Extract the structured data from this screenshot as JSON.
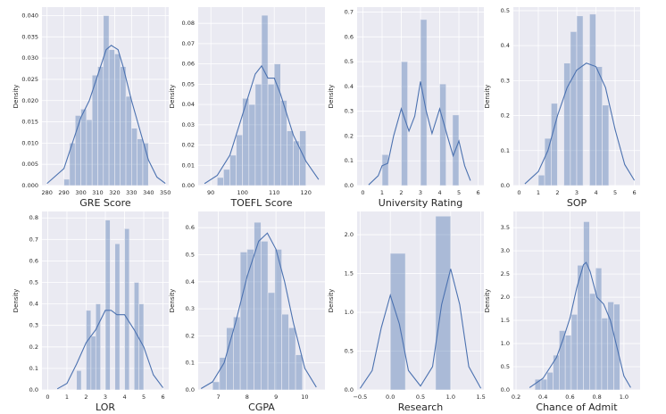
{
  "chart_data": [
    {
      "type": "histogram",
      "xlabel": "GRE Score",
      "ylabel": "Density",
      "color": "#4c72b0",
      "bins": [
        290,
        293.33,
        296.67,
        300,
        303.33,
        306.67,
        310,
        313.33,
        316.67,
        320,
        323.33,
        326.67,
        330,
        333.33,
        336.67,
        340
      ],
      "counts": [
        0.0015,
        0.01,
        0.0165,
        0.018,
        0.0155,
        0.026,
        0.028,
        0.04,
        0.032,
        0.031,
        0.028,
        0.021,
        0.0135,
        0.011,
        0.01
      ],
      "kde": {
        "x": [
          280,
          290,
          295,
          300,
          305,
          310,
          315,
          318,
          322,
          325,
          330,
          335,
          340,
          345,
          350
        ],
        "y": [
          0.0005,
          0.004,
          0.01,
          0.016,
          0.02,
          0.026,
          0.032,
          0.033,
          0.032,
          0.028,
          0.02,
          0.013,
          0.006,
          0.002,
          0.0005
        ]
      },
      "xlim": [
        277,
        352
      ],
      "xticks": [
        280,
        290,
        300,
        310,
        320,
        330,
        340,
        350
      ],
      "ylim": [
        0,
        0.042
      ],
      "yticks": [
        {
          "value": 0,
          "label": "0.000"
        },
        {
          "value": 0.005,
          "label": "0.005"
        },
        {
          "value": 0.01,
          "label": "0.010"
        },
        {
          "value": 0.015,
          "label": "0.015"
        },
        {
          "value": 0.02,
          "label": "0.020"
        },
        {
          "value": 0.025,
          "label": "0.025"
        },
        {
          "value": 0.03,
          "label": "0.030"
        },
        {
          "value": 0.035,
          "label": "0.035"
        },
        {
          "value": 0.04,
          "label": "0.040"
        }
      ]
    },
    {
      "type": "histogram",
      "xlabel": "TOEFL Score",
      "ylabel": "Density",
      "color": "#4c72b0",
      "bins": [
        92,
        94,
        96,
        98,
        100,
        102,
        104,
        106,
        108,
        110,
        112,
        114,
        116,
        118,
        120
      ],
      "counts": [
        0.004,
        0.008,
        0.015,
        0.025,
        0.043,
        0.04,
        0.05,
        0.084,
        0.05,
        0.06,
        0.042,
        0.027,
        0.022,
        0.027
      ],
      "kde": {
        "x": [
          88,
          92,
          96,
          100,
          104,
          106,
          108,
          110,
          112,
          116,
          120,
          124
        ],
        "y": [
          0.001,
          0.005,
          0.015,
          0.035,
          0.055,
          0.059,
          0.053,
          0.053,
          0.045,
          0.025,
          0.012,
          0.003
        ]
      },
      "xlim": [
        86,
        126
      ],
      "xticks": [
        90,
        100,
        110,
        120
      ],
      "ylim": [
        0,
        0.088
      ],
      "yticks": [
        {
          "value": 0,
          "label": "0.00"
        },
        {
          "value": 0.01,
          "label": "0.01"
        },
        {
          "value": 0.02,
          "label": "0.02"
        },
        {
          "value": 0.03,
          "label": "0.03"
        },
        {
          "value": 0.04,
          "label": "0.04"
        },
        {
          "value": 0.05,
          "label": "0.05"
        },
        {
          "value": 0.06,
          "label": "0.06"
        },
        {
          "value": 0.07,
          "label": "0.07"
        },
        {
          "value": 0.08,
          "label": "0.08"
        }
      ]
    },
    {
      "type": "histogram",
      "xlabel": "University Rating",
      "ylabel": "Density",
      "color": "#4c72b0",
      "bins": [
        1,
        1.33,
        1.67,
        2,
        2.33,
        2.67,
        3,
        3.33,
        3.67,
        4,
        4.33,
        4.67,
        5
      ],
      "counts": [
        0.125,
        0,
        0,
        0.5,
        0,
        0,
        0.67,
        0,
        0,
        0.41,
        0,
        0.285
      ],
      "kde": {
        "x": [
          0.3,
          0.8,
          1.0,
          1.3,
          1.6,
          2.0,
          2.4,
          2.7,
          3.0,
          3.3,
          3.6,
          4.0,
          4.4,
          4.7,
          5.0,
          5.3,
          5.6
        ],
        "y": [
          0.003,
          0.04,
          0.08,
          0.09,
          0.2,
          0.31,
          0.22,
          0.28,
          0.42,
          0.3,
          0.21,
          0.31,
          0.2,
          0.12,
          0.18,
          0.08,
          0.02
        ]
      },
      "xlim": [
        -0.3,
        6.3
      ],
      "xticks": [
        0,
        1,
        2,
        3,
        4,
        5,
        6
      ],
      "ylim": [
        0,
        0.72
      ],
      "yticks": [
        {
          "value": 0,
          "label": "0.0"
        },
        0.1,
        0.2,
        0.3,
        0.4,
        0.5,
        0.6,
        0.7
      ]
    },
    {
      "type": "histogram",
      "xlabel": "SOP",
      "ylabel": "Density",
      "color": "#4c72b0",
      "bins": [
        1,
        1.33,
        1.67,
        2,
        2.33,
        2.67,
        3,
        3.33,
        3.67,
        4,
        4.33,
        4.67,
        5
      ],
      "counts": [
        0.03,
        0.135,
        0.235,
        0,
        0.35,
        0.44,
        0.485,
        0,
        0.49,
        0.34,
        0.23,
        0
      ],
      "kde": {
        "x": [
          0.3,
          1,
          1.5,
          2,
          2.5,
          3,
          3.5,
          4,
          4.5,
          5,
          5.5,
          6
        ],
        "y": [
          0.005,
          0.04,
          0.1,
          0.2,
          0.28,
          0.33,
          0.35,
          0.34,
          0.28,
          0.16,
          0.06,
          0.015
        ]
      },
      "xlim": [
        -0.3,
        6.3
      ],
      "xticks": [
        0,
        1,
        2,
        3,
        4,
        5,
        6
      ],
      "ylim": [
        0,
        0.51
      ],
      "yticks": [
        {
          "value": 0,
          "label": "0.0"
        },
        0.1,
        0.2,
        0.3,
        0.4,
        0.5
      ]
    },
    {
      "type": "histogram",
      "xlabel": "LOR",
      "ylabel": "Density",
      "color": "#4c72b0",
      "bins": [
        1,
        1.25,
        1.5,
        1.75,
        2,
        2.25,
        2.5,
        2.75,
        3,
        3.25,
        3.5,
        3.75,
        4,
        4.25,
        4.5,
        4.75,
        5
      ],
      "counts": [
        0,
        0,
        0.09,
        0,
        0.37,
        0.25,
        0.4,
        0,
        0.79,
        0,
        0.68,
        0,
        0.75,
        0,
        0.5,
        0.4
      ],
      "kde": {
        "x": [
          0.5,
          1,
          1.5,
          2,
          2.5,
          3,
          3.3,
          3.6,
          4,
          4.5,
          5,
          5.5,
          6
        ],
        "y": [
          0.005,
          0.03,
          0.12,
          0.22,
          0.28,
          0.37,
          0.37,
          0.35,
          0.35,
          0.28,
          0.2,
          0.07,
          0.01
        ]
      },
      "xlim": [
        -0.3,
        6.3
      ],
      "xticks": [
        0,
        1,
        2,
        3,
        4,
        5,
        6
      ],
      "ylim": [
        0,
        0.83
      ],
      "yticks": [
        {
          "value": 0,
          "label": "0.0"
        },
        0.1,
        0.2,
        0.3,
        0.4,
        0.5,
        0.6,
        0.7,
        0.8
      ]
    },
    {
      "type": "histogram",
      "xlabel": "CGPA",
      "ylabel": "Density",
      "color": "#4c72b0",
      "bins": [
        6.8,
        7.04,
        7.28,
        7.52,
        7.76,
        8.0,
        8.24,
        8.48,
        8.72,
        8.96,
        9.2,
        9.44,
        9.68,
        9.92
      ],
      "counts": [
        0.03,
        0.12,
        0.23,
        0.27,
        0.51,
        0.52,
        0.62,
        0.55,
        0.36,
        0.52,
        0.28,
        0.23,
        0.13
      ],
      "kde": {
        "x": [
          6.4,
          6.8,
          7.2,
          7.6,
          8.0,
          8.4,
          8.7,
          9.0,
          9.3,
          9.6,
          10,
          10.4
        ],
        "y": [
          0.005,
          0.03,
          0.1,
          0.25,
          0.42,
          0.55,
          0.58,
          0.52,
          0.4,
          0.25,
          0.08,
          0.01
        ]
      },
      "xlim": [
        6.3,
        10.7
      ],
      "xticks": [
        7,
        8,
        9,
        10
      ],
      "ylim": [
        0,
        0.66
      ],
      "yticks": [
        {
          "value": 0,
          "label": "0.0"
        },
        0.1,
        0.2,
        0.3,
        0.4,
        0.5,
        0.6
      ]
    },
    {
      "type": "histogram",
      "xlabel": "Research",
      "ylabel": "Density",
      "color": "#4c72b0",
      "bins": [
        0,
        0.25,
        0.5,
        0.75,
        1
      ],
      "counts": [
        1.76,
        0,
        0,
        2.24
      ],
      "kde": {
        "x": [
          -0.5,
          -0.3,
          -0.15,
          0,
          0.15,
          0.3,
          0.5,
          0.7,
          0.85,
          1.0,
          1.15,
          1.3,
          1.5
        ],
        "y": [
          0.02,
          0.25,
          0.8,
          1.22,
          0.85,
          0.25,
          0.05,
          0.3,
          1.1,
          1.56,
          1.1,
          0.3,
          0.02
        ]
      },
      "xlim": [
        -0.55,
        1.55
      ],
      "xticks": [
        {
          "value": -0.5,
          "label": "−0.5"
        },
        {
          "value": 0,
          "label": "0.0"
        },
        0.5,
        {
          "value": 1,
          "label": "1.0"
        },
        1.5
      ],
      "ylim": [
        0,
        2.3
      ],
      "yticks": [
        {
          "value": 0,
          "label": "0.0"
        },
        0.5,
        {
          "value": 1,
          "label": "1.0"
        },
        1.5,
        {
          "value": 2,
          "label": "2.0"
        }
      ]
    },
    {
      "type": "histogram",
      "xlabel": "Chance of Admit",
      "ylabel": "Density",
      "color": "#4c72b0",
      "bins": [
        0.34,
        0.385,
        0.43,
        0.475,
        0.52,
        0.565,
        0.61,
        0.655,
        0.7,
        0.745,
        0.79,
        0.835,
        0.88,
        0.925,
        0.97
      ],
      "counts": [
        0.23,
        0.23,
        0.38,
        0.75,
        1.28,
        1.18,
        1.63,
        2.69,
        3.63,
        2.08,
        2.63,
        1.55,
        1.9,
        1.85
      ],
      "kde": {
        "x": [
          0.3,
          0.4,
          0.5,
          0.55,
          0.6,
          0.65,
          0.7,
          0.72,
          0.75,
          0.8,
          0.85,
          0.9,
          0.95,
          1.0,
          1.05
        ],
        "y": [
          0.05,
          0.25,
          0.7,
          1.1,
          1.55,
          2.2,
          2.7,
          2.75,
          2.55,
          2.0,
          1.85,
          1.5,
          0.9,
          0.3,
          0.05
        ]
      },
      "xlim": [
        0.18,
        1.12
      ],
      "xticks": [
        0.2,
        0.4,
        0.6,
        0.8,
        {
          "value": 1,
          "label": "1.0"
        }
      ],
      "ylim": [
        0,
        3.85
      ],
      "yticks": [
        {
          "value": 0,
          "label": "0.0"
        },
        0.5,
        {
          "value": 1,
          "label": "1.0"
        },
        1.5,
        {
          "value": 2,
          "label": "2.0"
        },
        2.5,
        {
          "value": 3,
          "label": "3.0"
        },
        3.5
      ]
    }
  ]
}
